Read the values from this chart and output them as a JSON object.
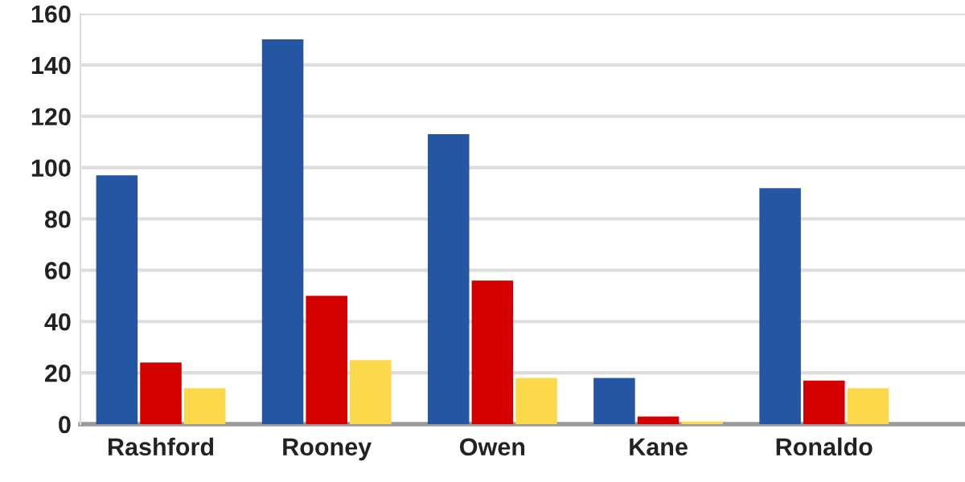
{
  "chart_data": {
    "type": "bar",
    "categories": [
      "Rashford",
      "Rooney",
      "Owen",
      "Kane",
      "Ronaldo"
    ],
    "series": [
      {
        "color": "#2456a4",
        "values": [
          97,
          150,
          113,
          18,
          92
        ]
      },
      {
        "color": "#d40000",
        "values": [
          24,
          50,
          56,
          3,
          17
        ]
      },
      {
        "color": "#fcd94a",
        "values": [
          14,
          25,
          18,
          1,
          14
        ]
      }
    ],
    "ylim": [
      0,
      160
    ],
    "yticks": [
      0,
      20,
      40,
      60,
      80,
      100,
      120,
      140,
      160
    ],
    "grid": "y"
  }
}
